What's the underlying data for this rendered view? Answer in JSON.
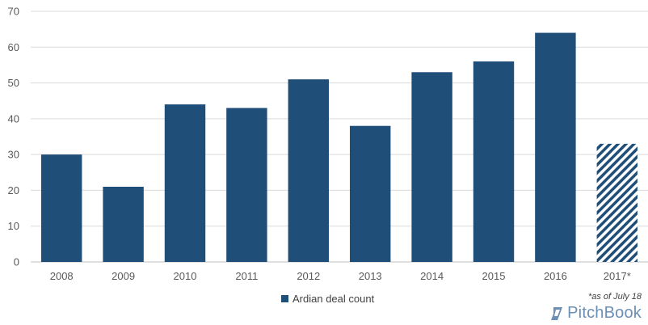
{
  "chart_data": {
    "type": "bar",
    "categories": [
      "2008",
      "2009",
      "2010",
      "2011",
      "2012",
      "2013",
      "2014",
      "2015",
      "2016",
      "2017*"
    ],
    "series": [
      {
        "name": "Ardian deal count",
        "values": [
          30,
          21,
          44,
          43,
          51,
          38,
          53,
          56,
          64,
          33
        ]
      }
    ],
    "title": "",
    "xlabel": "",
    "ylabel": "",
    "ylim": [
      0,
      70
    ],
    "yticks": [
      0,
      10,
      20,
      30,
      40,
      50,
      60,
      70
    ],
    "grid": true,
    "legend_position": "bottom",
    "hatched_categories": [
      "2017*"
    ],
    "colors": {
      "bar": "#1f4e79",
      "grid": "#d9d9d9",
      "axis": "#bfbfbf"
    }
  },
  "footnote": "*as of July 18",
  "brand": {
    "name": "PitchBook",
    "icon": "pitchbook-logo-icon",
    "color": "#6b8fb5"
  }
}
